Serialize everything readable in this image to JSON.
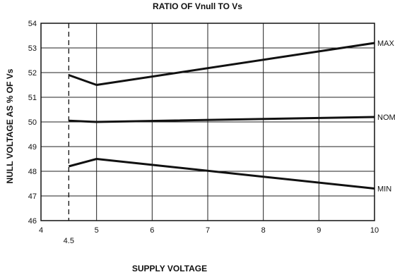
{
  "chart_data": {
    "type": "line",
    "title": "RATIO OF Vnull TO Vs",
    "xlabel": "SUPPLY VOLTAGE",
    "ylabel": "NULL VOLTAGE AS % OF Vs",
    "xlim": [
      4,
      10
    ],
    "ylim": [
      46,
      54
    ],
    "x_ticks": [
      "4",
      "5",
      "6",
      "7",
      "8",
      "9",
      "10"
    ],
    "y_ticks": [
      "46",
      "47",
      "48",
      "49",
      "50",
      "51",
      "52",
      "53",
      "54"
    ],
    "grid": true,
    "reference_line": {
      "x": 4.5,
      "label": "4.5",
      "style": "dashed"
    },
    "series": [
      {
        "name": "MAX",
        "x": [
          4.5,
          5,
          10
        ],
        "y": [
          51.9,
          51.5,
          53.2
        ]
      },
      {
        "name": "NOM",
        "x": [
          4.5,
          5,
          10
        ],
        "y": [
          50.05,
          50.0,
          50.2
        ]
      },
      {
        "name": "MIN",
        "x": [
          4.5,
          5,
          10
        ],
        "y": [
          48.2,
          48.5,
          47.3
        ]
      }
    ]
  }
}
